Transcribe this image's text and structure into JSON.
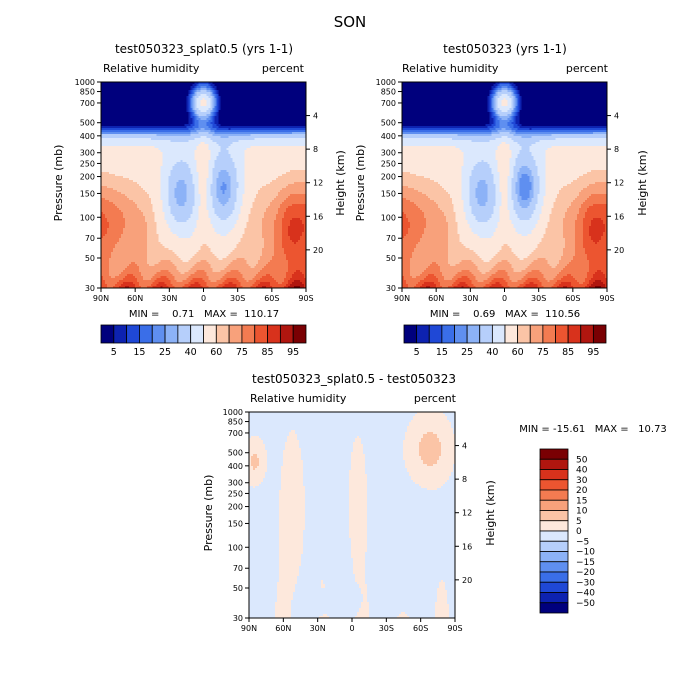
{
  "figure_title": "SON",
  "chart_data": [
    {
      "type": "contour",
      "title": "test050323_splat0.5 (yrs 1-1)",
      "variable": "Relative humidity",
      "units": "percent",
      "xlabel": "",
      "ylabel": "Pressure (mb)",
      "y2label": "Height (km)",
      "x_ticks": [
        "90N",
        "60N",
        "30N",
        "0",
        "30S",
        "60S",
        "90S"
      ],
      "x_values": [
        90,
        60,
        30,
        0,
        -30,
        -60,
        -90
      ],
      "pressure_ticks": [
        30,
        50,
        70,
        100,
        150,
        200,
        250,
        300,
        400,
        500,
        700,
        850,
        1000
      ],
      "pressure_tick_labels": [
        "30",
        "50",
        "70",
        "100",
        "150",
        "200",
        "250",
        "300",
        "400",
        "500",
        "700",
        "850",
        "1000"
      ],
      "height_ticks": [
        20,
        16,
        12,
        8,
        4
      ],
      "height_tick_labels": [
        "20",
        "16",
        "12",
        "8",
        "4"
      ],
      "ylim": [
        1000,
        30
      ],
      "stats_text": "MIN =    0.71   MAX =  110.17",
      "min": 0.71,
      "max": 110.17,
      "contour_levels": [
        5,
        10,
        15,
        20,
        25,
        30,
        40,
        50,
        60,
        65,
        70,
        75,
        80,
        85,
        90,
        95
      ],
      "colorbar_labels": [
        "5",
        "15",
        "25",
        "40",
        "60",
        "75",
        "85",
        "95"
      ]
    },
    {
      "type": "contour",
      "title": "test050323 (yrs 1-1)",
      "variable": "Relative humidity",
      "units": "percent",
      "xlabel": "",
      "ylabel": "Pressure (mb)",
      "y2label": "Height (km)",
      "x_ticks": [
        "90N",
        "60N",
        "30N",
        "0",
        "30S",
        "60S",
        "90S"
      ],
      "x_values": [
        90,
        60,
        30,
        0,
        -30,
        -60,
        -90
      ],
      "pressure_ticks": [
        30,
        50,
        70,
        100,
        150,
        200,
        250,
        300,
        400,
        500,
        700,
        850,
        1000
      ],
      "pressure_tick_labels": [
        "30",
        "50",
        "70",
        "100",
        "150",
        "200",
        "250",
        "300",
        "400",
        "500",
        "700",
        "850",
        "1000"
      ],
      "height_ticks": [
        20,
        16,
        12,
        8,
        4
      ],
      "height_tick_labels": [
        "20",
        "16",
        "12",
        "8",
        "4"
      ],
      "ylim": [
        1000,
        30
      ],
      "stats_text": "MIN =    0.69   MAX =  110.56",
      "min": 0.69,
      "max": 110.56,
      "contour_levels": [
        5,
        10,
        15,
        20,
        25,
        30,
        40,
        50,
        60,
        65,
        70,
        75,
        80,
        85,
        90,
        95
      ],
      "colorbar_labels": [
        "5",
        "15",
        "25",
        "40",
        "60",
        "75",
        "85",
        "95"
      ]
    },
    {
      "type": "contour",
      "title": "test050323_splat0.5 - test050323",
      "variable": "Relative humidity",
      "units": "percent",
      "xlabel": "",
      "ylabel": "Pressure (mb)",
      "y2label": "Height (km)",
      "x_ticks": [
        "90N",
        "60N",
        "30N",
        "0",
        "30S",
        "60S",
        "90S"
      ],
      "x_values": [
        90,
        60,
        30,
        0,
        -30,
        -60,
        -90
      ],
      "pressure_ticks": [
        30,
        50,
        70,
        100,
        150,
        200,
        250,
        300,
        400,
        500,
        700,
        850,
        1000
      ],
      "pressure_tick_labels": [
        "30",
        "50",
        "70",
        "100",
        "150",
        "200",
        "250",
        "300",
        "400",
        "500",
        "700",
        "850",
        "1000"
      ],
      "height_ticks": [
        20,
        16,
        12,
        8,
        4
      ],
      "height_tick_labels": [
        "20",
        "16",
        "12",
        "8",
        "4"
      ],
      "ylim": [
        1000,
        30
      ],
      "stats_text": "MIN = -15.61   MAX =   10.73",
      "min": -15.61,
      "max": 10.73,
      "contour_levels": [
        -50,
        -40,
        -30,
        -20,
        -15,
        -10,
        -5,
        0,
        5,
        10,
        15,
        20,
        30,
        40,
        50
      ],
      "colorbar_labels": [
        "50",
        "40",
        "30",
        "20",
        "15",
        "10",
        "5",
        "0",
        "−5",
        "−10",
        "−15",
        "−20",
        "−30",
        "−40",
        "−50"
      ]
    }
  ],
  "colors": {
    "abs": [
      "#00007d",
      "#0d22b0",
      "#1f48d6",
      "#3a6ee8",
      "#5f8ff0",
      "#8cb2f7",
      "#b6cffb",
      "#dbe8fd",
      "#fde8dc",
      "#fbc4a6",
      "#f8a17b",
      "#f37b51",
      "#ec5530",
      "#d8321c",
      "#b0160f",
      "#7a0003"
    ],
    "diff": [
      "#7a0003",
      "#b0160f",
      "#d8321c",
      "#ec5530",
      "#f37b51",
      "#f8a17b",
      "#fbc4a6",
      "#fde8dc",
      "#dbe8fd",
      "#b6cffb",
      "#8cb2f7",
      "#5f8ff0",
      "#3a6ee8",
      "#1f48d6",
      "#0d22b0",
      "#00007d"
    ]
  }
}
